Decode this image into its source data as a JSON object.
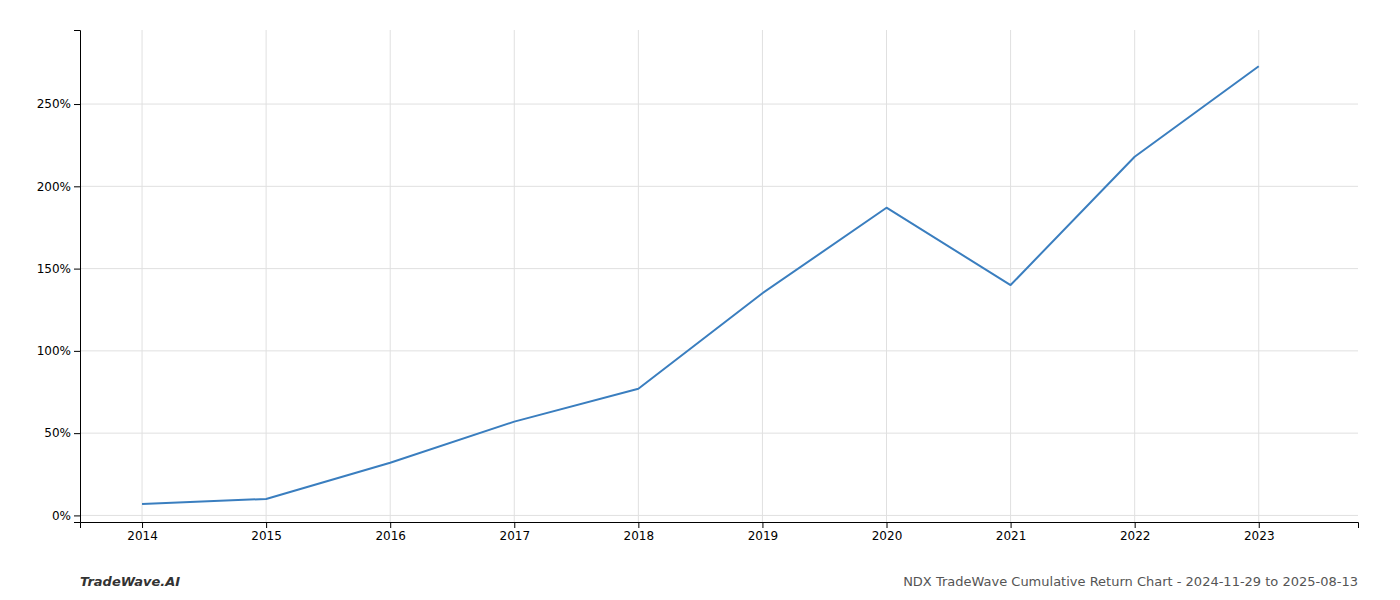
{
  "chart_data": {
    "type": "line",
    "x": [
      2014,
      2015,
      2016,
      2017,
      2018,
      2019,
      2020,
      2021,
      2022,
      2023
    ],
    "values": [
      0.07,
      0.1,
      0.32,
      0.57,
      0.77,
      1.35,
      1.87,
      1.4,
      2.18,
      2.73
    ],
    "color": "#3a7ebf",
    "xlim": [
      2013.5,
      2023.8
    ],
    "ylim": [
      -0.04,
      2.95
    ],
    "xticks": [
      2014,
      2015,
      2016,
      2017,
      2018,
      2019,
      2020,
      2021,
      2022,
      2023
    ],
    "yticks": [
      {
        "value": 0,
        "label": "0%"
      },
      {
        "value": 0.5,
        "label": "50%"
      },
      {
        "value": 1.0,
        "label": "100%"
      },
      {
        "value": 1.5,
        "label": "150%"
      },
      {
        "value": 2.0,
        "label": "200%"
      },
      {
        "value": 2.5,
        "label": "250%"
      }
    ],
    "grid": true,
    "annotations": [
      "TradeWave.AI",
      "NDX TradeWave Cumulative Return Chart - 2024-11-29 to 2025-08-13"
    ]
  }
}
